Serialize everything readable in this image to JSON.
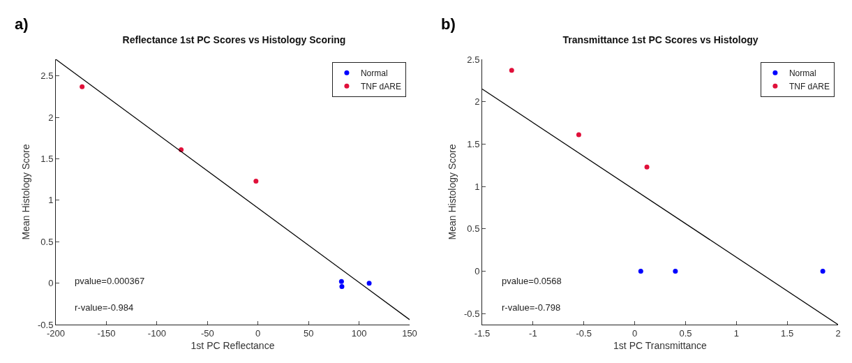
{
  "chart_data": [
    {
      "type": "scatter",
      "title": "Reflectance 1st PC Scores vs Histology Scoring",
      "xlabel": "1st PC Reflectance",
      "ylabel": "Mean Histology Score",
      "annotations": [
        "a)",
        "pvalue=0.000367",
        "r-value=-0.984"
      ],
      "series": [
        {
          "name": "Normal",
          "color": "#0000ff",
          "x": [
            82.6,
            83,
            110
          ],
          "values": [
            0.02,
            -0.04,
            0
          ],
          "marker": "circle"
        },
        {
          "name": "TNF dARE",
          "color": "#e0103a",
          "x": [
            -174,
            -76,
            -2
          ],
          "values": [
            2.37,
            1.61,
            1.23
          ],
          "marker": "circle"
        },
        {
          "type": "line",
          "color": "#000000",
          "x": [
            -200,
            150
          ],
          "values": [
            2.7,
            -0.44
          ],
          "marker": "none"
        }
      ],
      "xlim": [
        -200,
        150
      ],
      "xticks": [
        -200,
        -150,
        -100,
        -50,
        0,
        50,
        100,
        150
      ],
      "ylim": [
        -0.5,
        2.7
      ],
      "yticks": [
        -0.5,
        0,
        0.5,
        1,
        1.5,
        2,
        2.5
      ],
      "grid": false,
      "legend": "top right"
    },
    {
      "type": "scatter",
      "title": "Transmittance 1st PC Scores vs Histology",
      "xlabel": "1st PC Transmittance",
      "ylabel": "Mean Histology Score",
      "annotations": [
        "b)",
        "pvalue=0.0568",
        "r-value=-0.798"
      ],
      "series": [
        {
          "name": "Normal",
          "color": "#0000ff",
          "x": [
            0.06,
            0.4,
            1.85
          ],
          "values": [
            0,
            0,
            0
          ],
          "marker": "circle"
        },
        {
          "name": "TNF dARE",
          "color": "#e0103a",
          "x": [
            -1.21,
            -0.55,
            0.12
          ],
          "values": [
            2.37,
            1.61,
            1.23
          ],
          "marker": "circle"
        },
        {
          "type": "line",
          "color": "#000000",
          "x": [
            -1.5,
            2
          ],
          "values": [
            2.15,
            -0.63
          ],
          "marker": "none"
        }
      ],
      "xlim": [
        -1.5,
        2
      ],
      "xticks": [
        -1.5,
        -1,
        -0.5,
        0,
        0.5,
        1,
        1.5,
        2
      ],
      "ylim": [
        -0.63,
        2.5
      ],
      "yticks": [
        -0.5,
        0,
        0.5,
        1,
        1.5,
        2,
        2.5
      ],
      "grid": false,
      "legend": "top right"
    }
  ]
}
